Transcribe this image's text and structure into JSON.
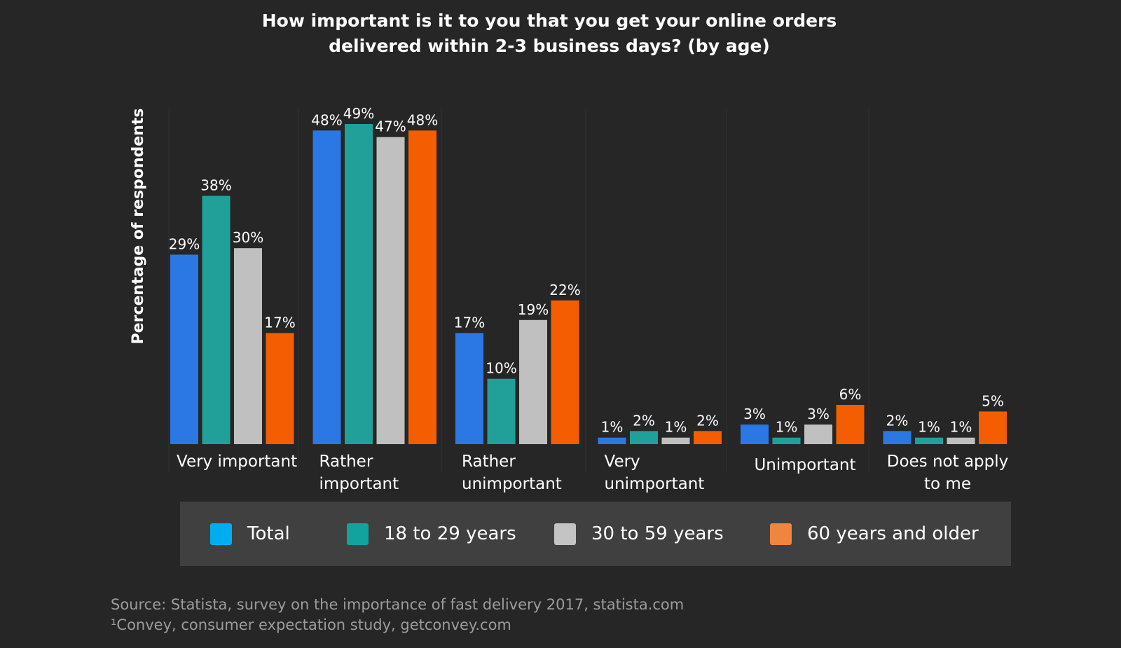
{
  "chart_data": {
    "type": "bar",
    "title_lines": [
      "How important is it to you that you get your online orders",
      "delivered within 2-3 business days? (by age)"
    ],
    "ylabel": "Percentage of respondents",
    "xlabel": "",
    "ylim": [
      0,
      49
    ],
    "value_suffix": "%",
    "categories": [
      [
        "Very important"
      ],
      [
        "Rather",
        "important"
      ],
      [
        "Rather",
        "unimportant"
      ],
      [
        "Very",
        "unimportant"
      ],
      [
        "Unimportant"
      ],
      [
        "Does not apply",
        "to me"
      ]
    ],
    "series": [
      {
        "name": "Total",
        "color": "#2b78e4",
        "values": [
          29,
          48,
          17,
          1,
          3,
          2
        ]
      },
      {
        "name": "18 to 29 years",
        "color": "#21a09a",
        "values": [
          38,
          49,
          10,
          2,
          1,
          1
        ]
      },
      {
        "name": "30 to 59 years",
        "color": "#c0c0c0",
        "values": [
          30,
          47,
          19,
          1,
          3,
          1
        ]
      },
      {
        "name": "60 years and older",
        "color": "#f45d01",
        "values": [
          17,
          48,
          22,
          2,
          6,
          5
        ]
      }
    ],
    "legend_placement": "bottom",
    "grid": false
  },
  "legend": {
    "items": [
      {
        "label": "Total",
        "color": "#00aeef"
      },
      {
        "label": "18 to 29 years",
        "color": "#13a39e"
      },
      {
        "label": "30 to 59 years",
        "color": "#c4c4c4"
      },
      {
        "label": "60 years and older",
        "color": "#f0853f"
      }
    ]
  },
  "source": {
    "line1": "Source: Statista, survey on the importance of fast delivery 2017, statista.com",
    "line2": "¹Convey, consumer expectation study, getconvey.com"
  },
  "colors": {
    "background": "#262626",
    "legend_background": "#404040",
    "source_text": "#9c9c9c"
  }
}
